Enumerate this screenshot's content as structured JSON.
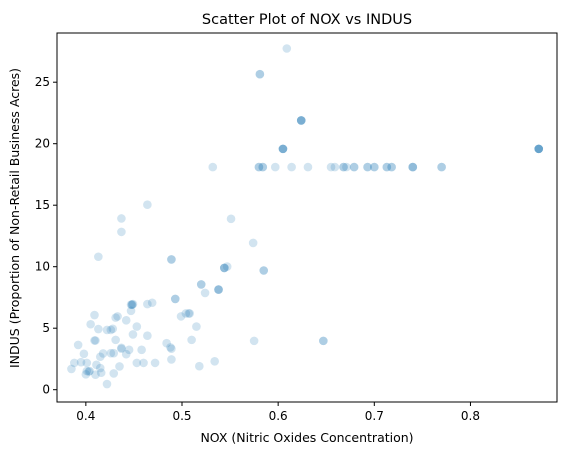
{
  "chart_data": {
    "type": "scatter",
    "title": "Scatter Plot of NOX vs INDUS",
    "xlabel": "NOX (Nitric Oxides Concentration)",
    "ylabel": "INDUS (Proportion of Non-Retail Business Acres)",
    "xlim": [
      0.37,
      0.89
    ],
    "ylim": [
      -1,
      29
    ],
    "x_ticks": [
      0.4,
      0.5,
      0.6,
      0.7,
      0.8
    ],
    "x_tick_labels": [
      "0.4",
      "0.5",
      "0.6",
      "0.7",
      "0.8"
    ],
    "y_ticks": [
      0,
      5,
      10,
      15,
      20,
      25
    ],
    "y_tick_labels": [
      "0",
      "5",
      "10",
      "15",
      "20",
      "25"
    ],
    "grid": false,
    "marker_color": "#1f77b4",
    "marker_alpha": 0.2,
    "points": [
      {
        "x": 0.871,
        "y": 19.58
      },
      {
        "x": 0.871,
        "y": 19.58
      },
      {
        "x": 0.871,
        "y": 19.58
      },
      {
        "x": 0.871,
        "y": 19.58
      },
      {
        "x": 0.871,
        "y": 19.58
      },
      {
        "x": 0.77,
        "y": 18.1
      },
      {
        "x": 0.77,
        "y": 18.1
      },
      {
        "x": 0.74,
        "y": 18.1
      },
      {
        "x": 0.74,
        "y": 18.1
      },
      {
        "x": 0.74,
        "y": 18.1
      },
      {
        "x": 0.718,
        "y": 18.1
      },
      {
        "x": 0.718,
        "y": 18.1
      },
      {
        "x": 0.713,
        "y": 18.1
      },
      {
        "x": 0.713,
        "y": 18.1
      },
      {
        "x": 0.7,
        "y": 18.1
      },
      {
        "x": 0.7,
        "y": 18.1
      },
      {
        "x": 0.693,
        "y": 18.1
      },
      {
        "x": 0.693,
        "y": 18.1
      },
      {
        "x": 0.679,
        "y": 18.1
      },
      {
        "x": 0.679,
        "y": 18.1
      },
      {
        "x": 0.671,
        "y": 18.1
      },
      {
        "x": 0.668,
        "y": 18.1
      },
      {
        "x": 0.668,
        "y": 18.1
      },
      {
        "x": 0.659,
        "y": 18.1
      },
      {
        "x": 0.655,
        "y": 18.1
      },
      {
        "x": 0.631,
        "y": 18.1
      },
      {
        "x": 0.614,
        "y": 18.1
      },
      {
        "x": 0.597,
        "y": 18.1
      },
      {
        "x": 0.584,
        "y": 18.1
      },
      {
        "x": 0.584,
        "y": 18.1
      },
      {
        "x": 0.58,
        "y": 18.1
      },
      {
        "x": 0.58,
        "y": 18.1
      },
      {
        "x": 0.532,
        "y": 18.1
      },
      {
        "x": 0.605,
        "y": 19.58
      },
      {
        "x": 0.605,
        "y": 19.58
      },
      {
        "x": 0.605,
        "y": 19.58
      },
      {
        "x": 0.605,
        "y": 19.58
      },
      {
        "x": 0.624,
        "y": 21.89
      },
      {
        "x": 0.624,
        "y": 21.89
      },
      {
        "x": 0.624,
        "y": 21.89
      },
      {
        "x": 0.624,
        "y": 21.89
      },
      {
        "x": 0.581,
        "y": 25.65
      },
      {
        "x": 0.581,
        "y": 25.65
      },
      {
        "x": 0.609,
        "y": 27.74
      },
      {
        "x": 0.464,
        "y": 15.04
      },
      {
        "x": 0.551,
        "y": 13.89
      },
      {
        "x": 0.437,
        "y": 13.92
      },
      {
        "x": 0.437,
        "y": 12.83
      },
      {
        "x": 0.574,
        "y": 11.93
      },
      {
        "x": 0.413,
        "y": 10.81
      },
      {
        "x": 0.489,
        "y": 10.59
      },
      {
        "x": 0.489,
        "y": 10.59
      },
      {
        "x": 0.547,
        "y": 10.01
      },
      {
        "x": 0.544,
        "y": 9.9
      },
      {
        "x": 0.544,
        "y": 9.9
      },
      {
        "x": 0.544,
        "y": 9.9
      },
      {
        "x": 0.585,
        "y": 9.69
      },
      {
        "x": 0.585,
        "y": 9.69
      },
      {
        "x": 0.52,
        "y": 8.56
      },
      {
        "x": 0.52,
        "y": 8.56
      },
      {
        "x": 0.538,
        "y": 8.14
      },
      {
        "x": 0.538,
        "y": 8.14
      },
      {
        "x": 0.538,
        "y": 8.14
      },
      {
        "x": 0.524,
        "y": 7.87
      },
      {
        "x": 0.493,
        "y": 7.38
      },
      {
        "x": 0.493,
        "y": 7.38
      },
      {
        "x": 0.469,
        "y": 7.07
      },
      {
        "x": 0.464,
        "y": 6.96
      },
      {
        "x": 0.448,
        "y": 6.91
      },
      {
        "x": 0.448,
        "y": 6.91
      },
      {
        "x": 0.447,
        "y": 6.41
      },
      {
        "x": 0.508,
        "y": 6.2
      },
      {
        "x": 0.504,
        "y": 6.2
      },
      {
        "x": 0.507,
        "y": 6.2
      },
      {
        "x": 0.409,
        "y": 6.07
      },
      {
        "x": 0.499,
        "y": 5.96
      },
      {
        "x": 0.431,
        "y": 5.86
      },
      {
        "x": 0.433,
        "y": 5.96
      },
      {
        "x": 0.442,
        "y": 5.64
      },
      {
        "x": 0.405,
        "y": 5.32
      },
      {
        "x": 0.453,
        "y": 5.13
      },
      {
        "x": 0.515,
        "y": 5.13
      },
      {
        "x": 0.428,
        "y": 4.95
      },
      {
        "x": 0.426,
        "y": 4.86
      },
      {
        "x": 0.413,
        "y": 4.93
      },
      {
        "x": 0.449,
        "y": 4.49
      },
      {
        "x": 0.51,
        "y": 4.05
      },
      {
        "x": 0.647,
        "y": 3.97
      },
      {
        "x": 0.647,
        "y": 3.97
      },
      {
        "x": 0.575,
        "y": 3.97
      },
      {
        "x": 0.484,
        "y": 3.78
      },
      {
        "x": 0.488,
        "y": 3.44
      },
      {
        "x": 0.437,
        "y": 3.41
      },
      {
        "x": 0.445,
        "y": 3.24
      },
      {
        "x": 0.458,
        "y": 3.24
      },
      {
        "x": 0.489,
        "y": 3.33
      },
      {
        "x": 0.392,
        "y": 3.64
      },
      {
        "x": 0.398,
        "y": 2.92
      },
      {
        "x": 0.429,
        "y": 2.97
      },
      {
        "x": 0.442,
        "y": 2.89
      },
      {
        "x": 0.415,
        "y": 2.68
      },
      {
        "x": 0.489,
        "y": 2.46
      },
      {
        "x": 0.395,
        "y": 2.24
      },
      {
        "x": 0.388,
        "y": 2.18
      },
      {
        "x": 0.401,
        "y": 2.18
      },
      {
        "x": 0.431,
        "y": 4.05
      },
      {
        "x": 0.411,
        "y": 2.02
      },
      {
        "x": 0.435,
        "y": 1.89
      },
      {
        "x": 0.415,
        "y": 1.76
      },
      {
        "x": 0.385,
        "y": 1.69
      },
      {
        "x": 0.401,
        "y": 1.52
      },
      {
        "x": 0.403,
        "y": 1.47
      },
      {
        "x": 0.416,
        "y": 1.38
      },
      {
        "x": 0.41,
        "y": 1.22
      },
      {
        "x": 0.4,
        "y": 1.25
      },
      {
        "x": 0.429,
        "y": 1.32
      },
      {
        "x": 0.422,
        "y": 0.46
      },
      {
        "x": 0.41,
        "y": 4.0
      },
      {
        "x": 0.518,
        "y": 1.91
      },
      {
        "x": 0.534,
        "y": 2.31
      },
      {
        "x": 0.453,
        "y": 2.18
      },
      {
        "x": 0.437,
        "y": 3.33
      },
      {
        "x": 0.464,
        "y": 4.39
      },
      {
        "x": 0.472,
        "y": 2.18
      },
      {
        "x": 0.46,
        "y": 2.18
      },
      {
        "x": 0.422,
        "y": 4.86
      },
      {
        "x": 0.426,
        "y": 2.97
      },
      {
        "x": 0.404,
        "y": 1.52
      },
      {
        "x": 0.409,
        "y": 4.0
      },
      {
        "x": 0.418,
        "y": 2.95
      },
      {
        "x": 0.447,
        "y": 6.91
      },
      {
        "x": 0.449,
        "y": 6.96
      }
    ]
  }
}
